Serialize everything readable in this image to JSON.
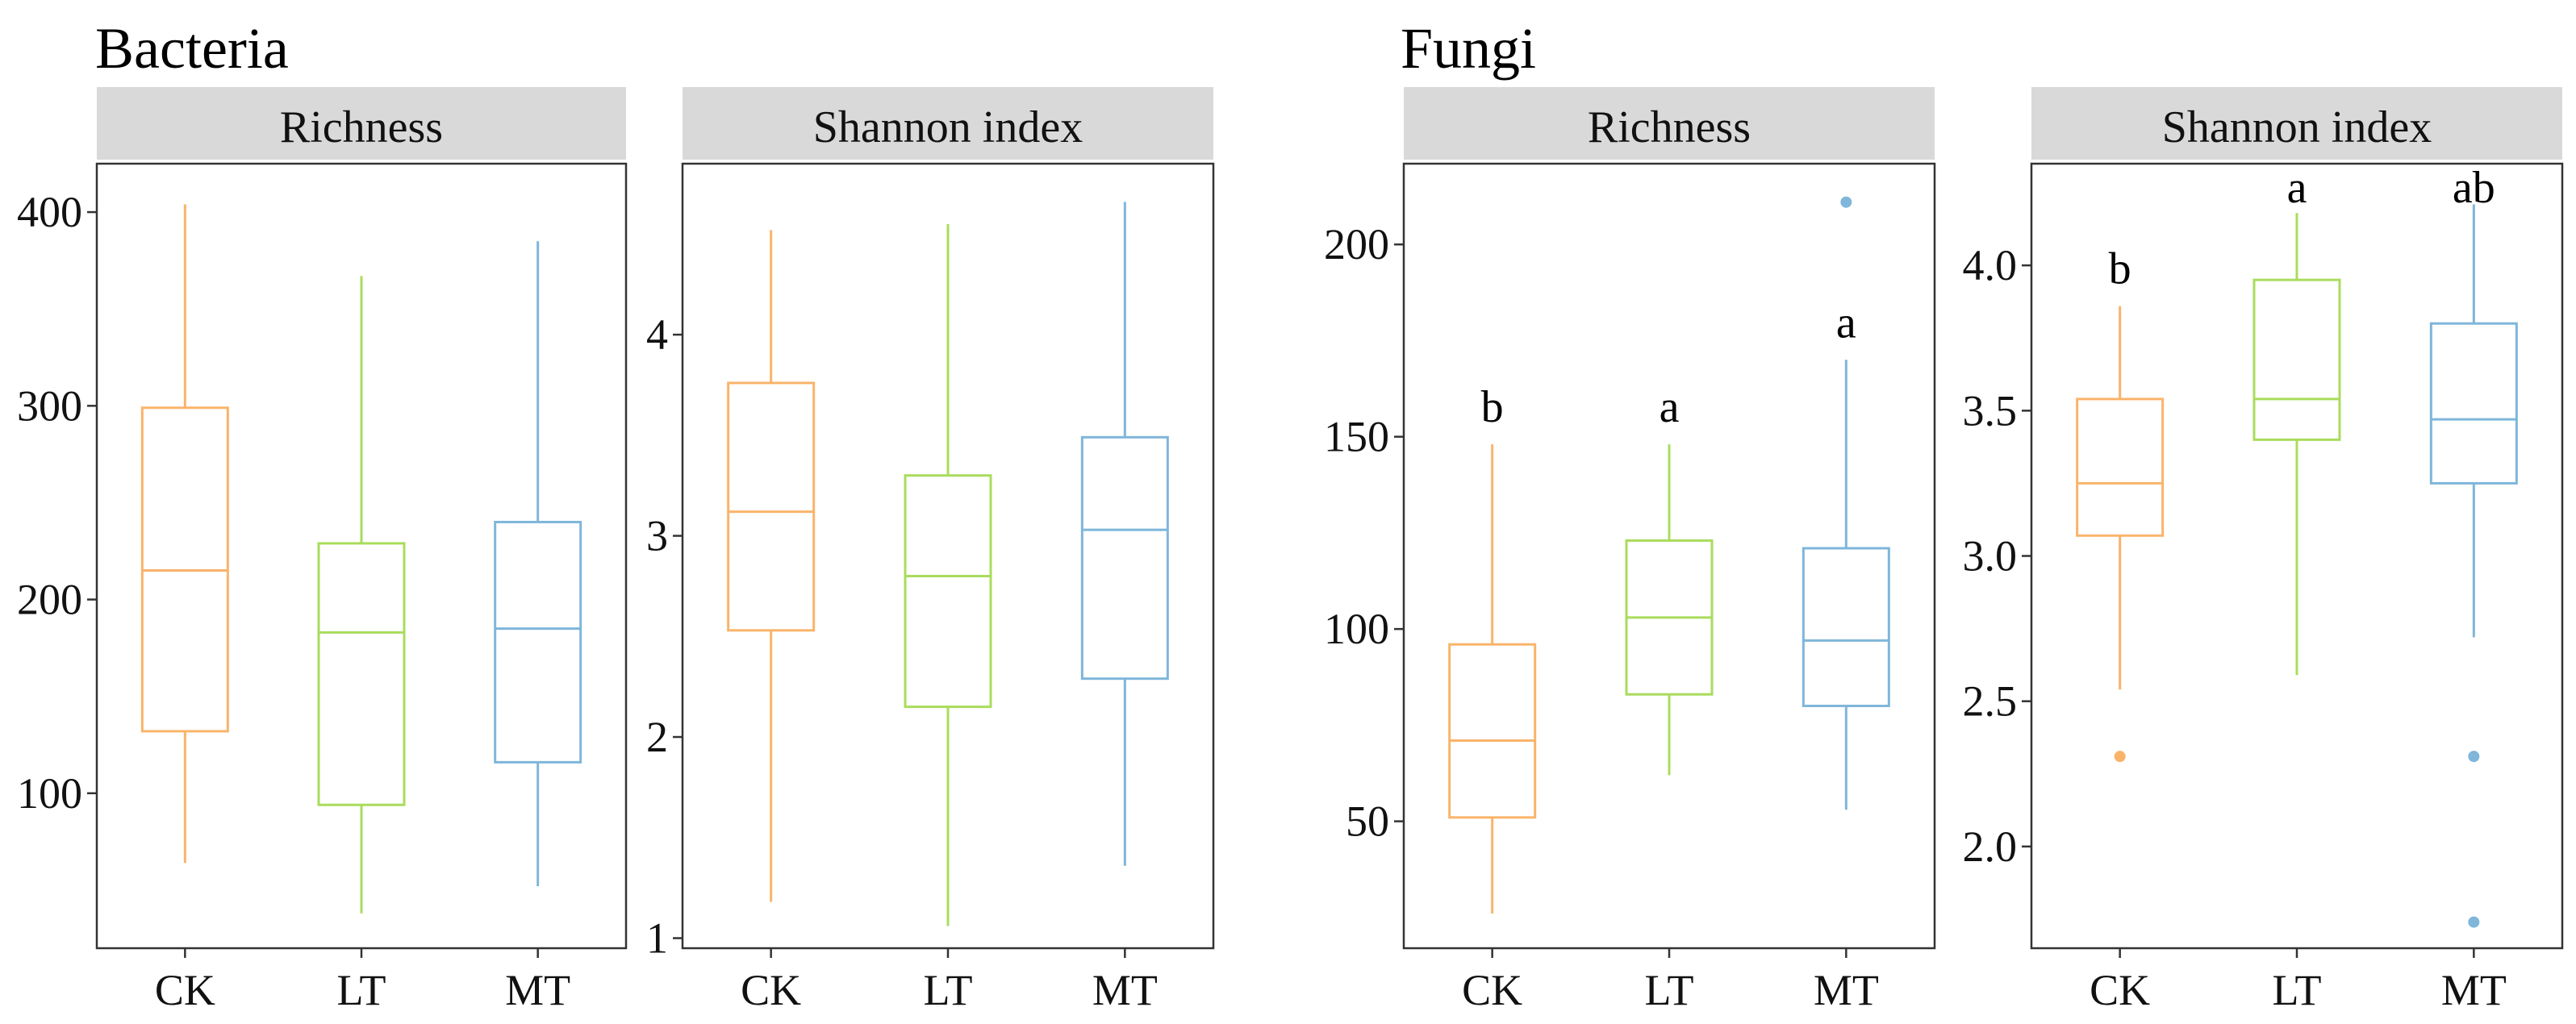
{
  "figure": {
    "groups": [
      {
        "title": "Bacteria"
      },
      {
        "title": "Fungi"
      }
    ],
    "colors": {
      "CK": "#F9B46A",
      "LT": "#A9DC5C",
      "MT": "#7FB6DA",
      "outlier": "#7FB6DA"
    }
  },
  "chart_data": [
    {
      "type": "box",
      "group": "Bacteria",
      "title": "Richness",
      "categories": [
        "CK",
        "LT",
        "MT"
      ],
      "ylim": [
        20,
        425
      ],
      "yticks": [
        100,
        200,
        300,
        400
      ],
      "boxes": [
        {
          "min": 64,
          "q1": 132,
          "median": 215,
          "q3": 299,
          "max": 404
        },
        {
          "min": 38,
          "q1": 94,
          "median": 183,
          "q3": 229,
          "max": 367
        },
        {
          "min": 52,
          "q1": 116,
          "median": 185,
          "q3": 240,
          "max": 385
        }
      ],
      "outliers": [
        [],
        [],
        []
      ],
      "letters": [
        "",
        "",
        ""
      ]
    },
    {
      "type": "box",
      "group": "Bacteria",
      "title": "Shannon index",
      "categories": [
        "CK",
        "LT",
        "MT"
      ],
      "ylim": [
        0.95,
        4.85
      ],
      "yticks": [
        1,
        2,
        3,
        4
      ],
      "boxes": [
        {
          "min": 1.18,
          "q1": 2.53,
          "median": 3.12,
          "q3": 3.76,
          "max": 4.52
        },
        {
          "min": 1.06,
          "q1": 2.15,
          "median": 2.8,
          "q3": 3.3,
          "max": 4.55
        },
        {
          "min": 1.36,
          "q1": 2.29,
          "median": 3.03,
          "q3": 3.49,
          "max": 4.66
        }
      ],
      "outliers": [
        [],
        [],
        []
      ],
      "letters": [
        "",
        "",
        ""
      ]
    },
    {
      "type": "box",
      "group": "Fungi",
      "title": "Richness",
      "categories": [
        "CK",
        "LT",
        "MT"
      ],
      "ylim": [
        17,
        221
      ],
      "yticks": [
        50,
        100,
        150,
        200
      ],
      "boxes": [
        {
          "min": 26,
          "q1": 51,
          "median": 71,
          "q3": 96,
          "max": 148
        },
        {
          "min": 62,
          "q1": 83,
          "median": 103,
          "q3": 123,
          "max": 148
        },
        {
          "min": 53,
          "q1": 80,
          "median": 97,
          "q3": 121,
          "max": 170
        }
      ],
      "outliers": [
        [],
        [],
        [
          211
        ]
      ],
      "letters": [
        "b",
        "a",
        "a"
      ]
    },
    {
      "type": "box",
      "group": "Fungi",
      "title": "Shannon index",
      "categories": [
        "CK",
        "LT",
        "MT"
      ],
      "ylim": [
        1.65,
        4.35
      ],
      "yticks": [
        "2.0",
        "2.5",
        "3.0",
        "3.5",
        "4.0"
      ],
      "boxes": [
        {
          "min": 2.54,
          "q1": 3.07,
          "median": 3.25,
          "q3": 3.54,
          "max": 3.86
        },
        {
          "min": 2.59,
          "q1": 3.4,
          "median": 3.54,
          "q3": 3.95,
          "max": 4.18
        },
        {
          "min": 2.72,
          "q1": 3.25,
          "median": 3.47,
          "q3": 3.8,
          "max": 4.21
        }
      ],
      "outliers": [
        [
          2.31
        ],
        [],
        [
          2.31,
          1.74
        ]
      ],
      "letters": [
        "b",
        "a",
        "ab"
      ]
    }
  ]
}
